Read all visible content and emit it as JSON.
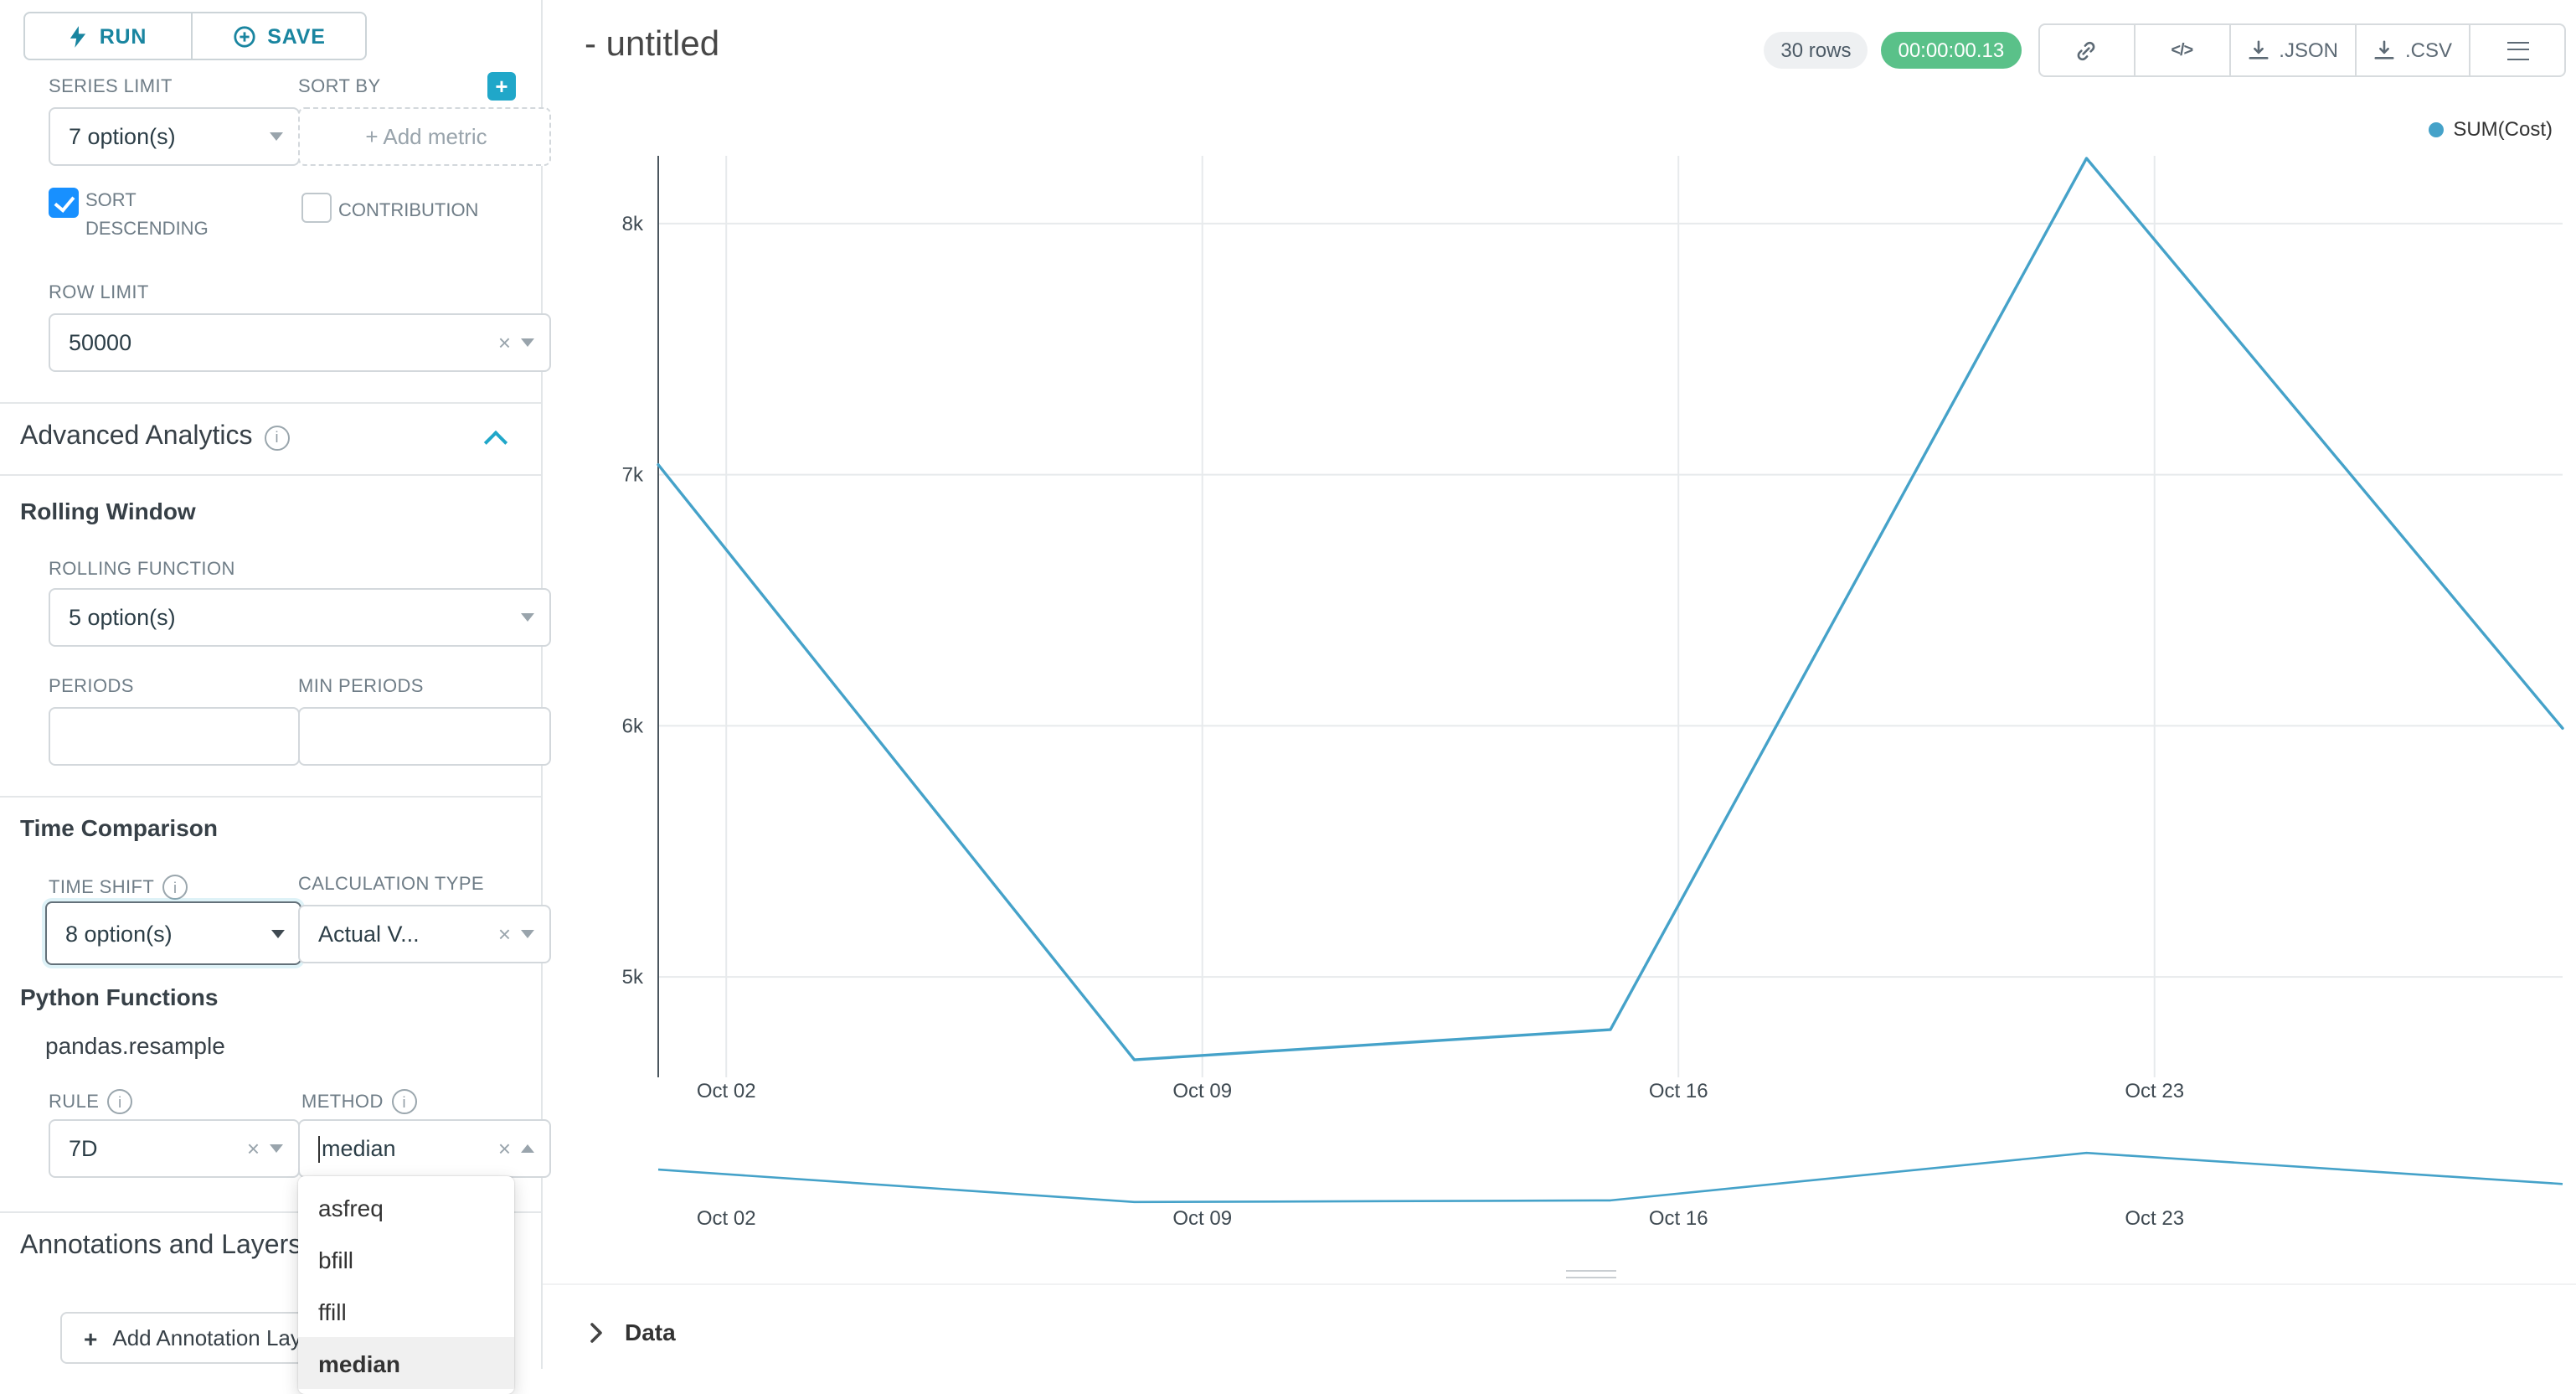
{
  "icons": {
    "clear": "×",
    "plus": "+",
    "code": "</>",
    "info": "i"
  },
  "toolbar": {
    "run": "RUN",
    "save": "SAVE"
  },
  "controls": {
    "series_limit": {
      "label": "SERIES LIMIT",
      "value": "7 option(s)"
    },
    "sort_by": {
      "label": "SORT BY",
      "placeholder": "+ Add metric"
    },
    "sort_descending": {
      "label": "SORT DESCENDING",
      "checked": true
    },
    "contribution": {
      "label": "CONTRIBUTION",
      "checked": false
    },
    "row_limit": {
      "label": "ROW LIMIT",
      "value": "50000"
    }
  },
  "advanced_analytics": {
    "title": "Advanced Analytics",
    "rolling_window": {
      "title": "Rolling Window",
      "rolling_function": {
        "label": "ROLLING FUNCTION",
        "value": "5 option(s)"
      },
      "periods": {
        "label": "PERIODS",
        "value": ""
      },
      "min_periods": {
        "label": "MIN PERIODS",
        "value": ""
      }
    },
    "time_comparison": {
      "title": "Time Comparison",
      "time_shift": {
        "label": "TIME SHIFT",
        "value": "8 option(s)"
      },
      "calculation_type": {
        "label": "CALCULATION TYPE",
        "value": "Actual V..."
      }
    },
    "python_functions": {
      "title": "Python Functions",
      "subtitle": "pandas.resample",
      "rule": {
        "label": "RULE",
        "value": "7D"
      },
      "method": {
        "label": "METHOD",
        "value": "median",
        "options": [
          "asfreq",
          "bfill",
          "ffill",
          "median"
        ],
        "highlighted_option": "median"
      }
    }
  },
  "annotations": {
    "title": "Annotations and Layers",
    "add_layer_button": "Add Annotation Layer"
  },
  "header": {
    "title": "- untitled",
    "row_count_badge": "30 rows",
    "timer_badge": "00:00:00.13",
    "json_button": ".JSON",
    "csv_button": ".CSV"
  },
  "data_panel": {
    "title": "Data"
  },
  "colors": {
    "primary": "#20a7c9",
    "checkbox_blue": "#1890ff",
    "timer_green": "#5ac189",
    "line": "#45a2c9"
  },
  "chart_data": {
    "type": "line",
    "title": "- untitled",
    "legend": [
      "SUM(Cost)"
    ],
    "legend_position": "top-right",
    "grid": true,
    "line_color": "#45a2c9",
    "x_range_days": [
      0,
      28
    ],
    "ylim": [
      4600,
      8270
    ],
    "x_ticks": [
      {
        "label": "Oct 02",
        "day": 1
      },
      {
        "label": "Oct 09",
        "day": 8
      },
      {
        "label": "Oct 16",
        "day": 15
      },
      {
        "label": "Oct 23",
        "day": 22
      }
    ],
    "y_ticks": [
      {
        "label": "8k",
        "value": 8000
      },
      {
        "label": "7k",
        "value": 7000
      },
      {
        "label": "6k",
        "value": 6000
      },
      {
        "label": "5k",
        "value": 5000
      }
    ],
    "series": [
      {
        "name": "SUM(Cost)",
        "x": [
          "Oct 01",
          "Oct 08",
          "Oct 15",
          "Oct 22",
          "Oct 29"
        ],
        "x_days": [
          0,
          7,
          14,
          21,
          28
        ],
        "values": [
          7040,
          4670,
          4790,
          8260,
          5990
        ]
      }
    ],
    "has_mini_range_chart": true
  }
}
